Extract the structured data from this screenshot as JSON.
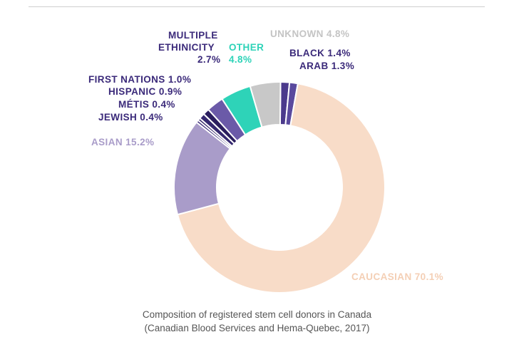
{
  "chart_data": {
    "type": "pie",
    "variant": "donut",
    "title": "",
    "caption": [
      "Composition of registered stem cell donors in Canada",
      "(Canadian Blood Services and Hema-Quebec, 2017)"
    ],
    "slices": [
      {
        "id": "black",
        "label": "BLACK 1.4%",
        "value": 1.4,
        "color": "#4b3a8c"
      },
      {
        "id": "arab",
        "label": "ARAB 1.3%",
        "value": 1.3,
        "color": "#5a4a9e"
      },
      {
        "id": "caucasian",
        "label": "CAUCASIAN 70.1%",
        "value": 70.1,
        "color": "#f8dcc8"
      },
      {
        "id": "asian",
        "label": "ASIAN 15.2%",
        "value": 15.2,
        "color": "#a99cc9"
      },
      {
        "id": "jewish",
        "label": "JEWISH 0.4%",
        "value": 0.4,
        "color": "#3a2a78"
      },
      {
        "id": "metis",
        "label": "MÉTIS 0.4%",
        "value": 0.4,
        "color": "#2d1f63"
      },
      {
        "id": "hispanic",
        "label": "HISPANIC 0.9%",
        "value": 0.9,
        "color": "#35286f"
      },
      {
        "id": "first_nations",
        "label": "FIRST NATIONS 1.0%",
        "value": 1.0,
        "color": "#2a1d5e"
      },
      {
        "id": "multiple",
        "label": "MULTIPLE ETHINICITY 2.7%",
        "value": 2.7,
        "color": "#6b5aa8"
      },
      {
        "id": "other",
        "label": "OTHER 4.8%",
        "value": 4.8,
        "color": "#2ed3b8"
      },
      {
        "id": "unknown",
        "label": "UNKNOWN 4.8%",
        "value": 4.8,
        "color": "#c8c8c8"
      }
    ],
    "label_colors": {
      "dark": "#3b2a7a",
      "asian": "#a99cc9",
      "other": "#2ed3b8",
      "unknown": "#c4c4c4",
      "caucasian": "#f4cfb5"
    }
  },
  "labels": {
    "multiple_line1": "MULTIPLE",
    "multiple_line2": "ETHINICITY",
    "multiple_line3": "2.7%",
    "other_line1": "OTHER",
    "other_line2": "4.8%",
    "unknown": "UNKNOWN 4.8%",
    "black": "BLACK 1.4%",
    "arab": "ARAB 1.3%",
    "first_nations": "FIRST NATIONS 1.0%",
    "hispanic": "HISPANIC 0.9%",
    "metis": "MÉTIS 0.4%",
    "jewish": "JEWISH 0.4%",
    "asian": "ASIAN 15.2%",
    "caucasian": "CAUCASIAN 70.1%"
  }
}
